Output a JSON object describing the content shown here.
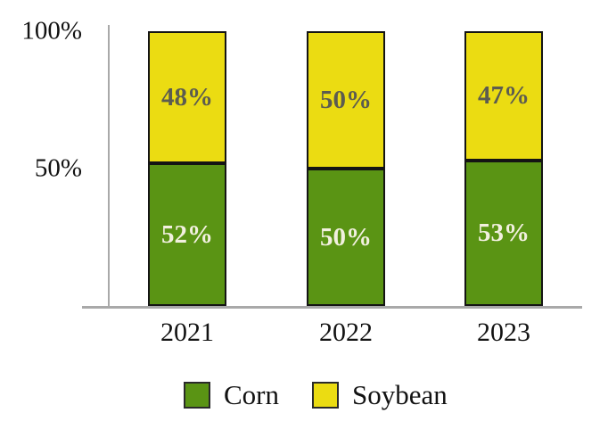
{
  "chart_data": {
    "type": "bar",
    "stacked": true,
    "orientation": "vertical",
    "title": "",
    "xlabel": "",
    "ylabel": "",
    "categories": [
      "2021",
      "2022",
      "2023"
    ],
    "series": [
      {
        "name": "Corn",
        "color": "#5a9414",
        "label_color": "#f2f0df",
        "values": [
          52,
          50,
          53
        ]
      },
      {
        "name": "Soybean",
        "color": "#ebdc12",
        "label_color": "#5c5c50",
        "values": [
          48,
          50,
          47
        ]
      }
    ],
    "value_suffix": "%",
    "ylim": [
      0,
      100
    ],
    "yticks": [
      {
        "value": 100,
        "label": "100%"
      },
      {
        "value": 50,
        "label": "50%"
      }
    ],
    "grid": false,
    "legend_position": "bottom",
    "bar_labels_shown": true
  },
  "colors": {
    "background": "#ffffff",
    "axis_line": "#a9a9a9",
    "bar_border": "#141414",
    "text": "#121212"
  }
}
